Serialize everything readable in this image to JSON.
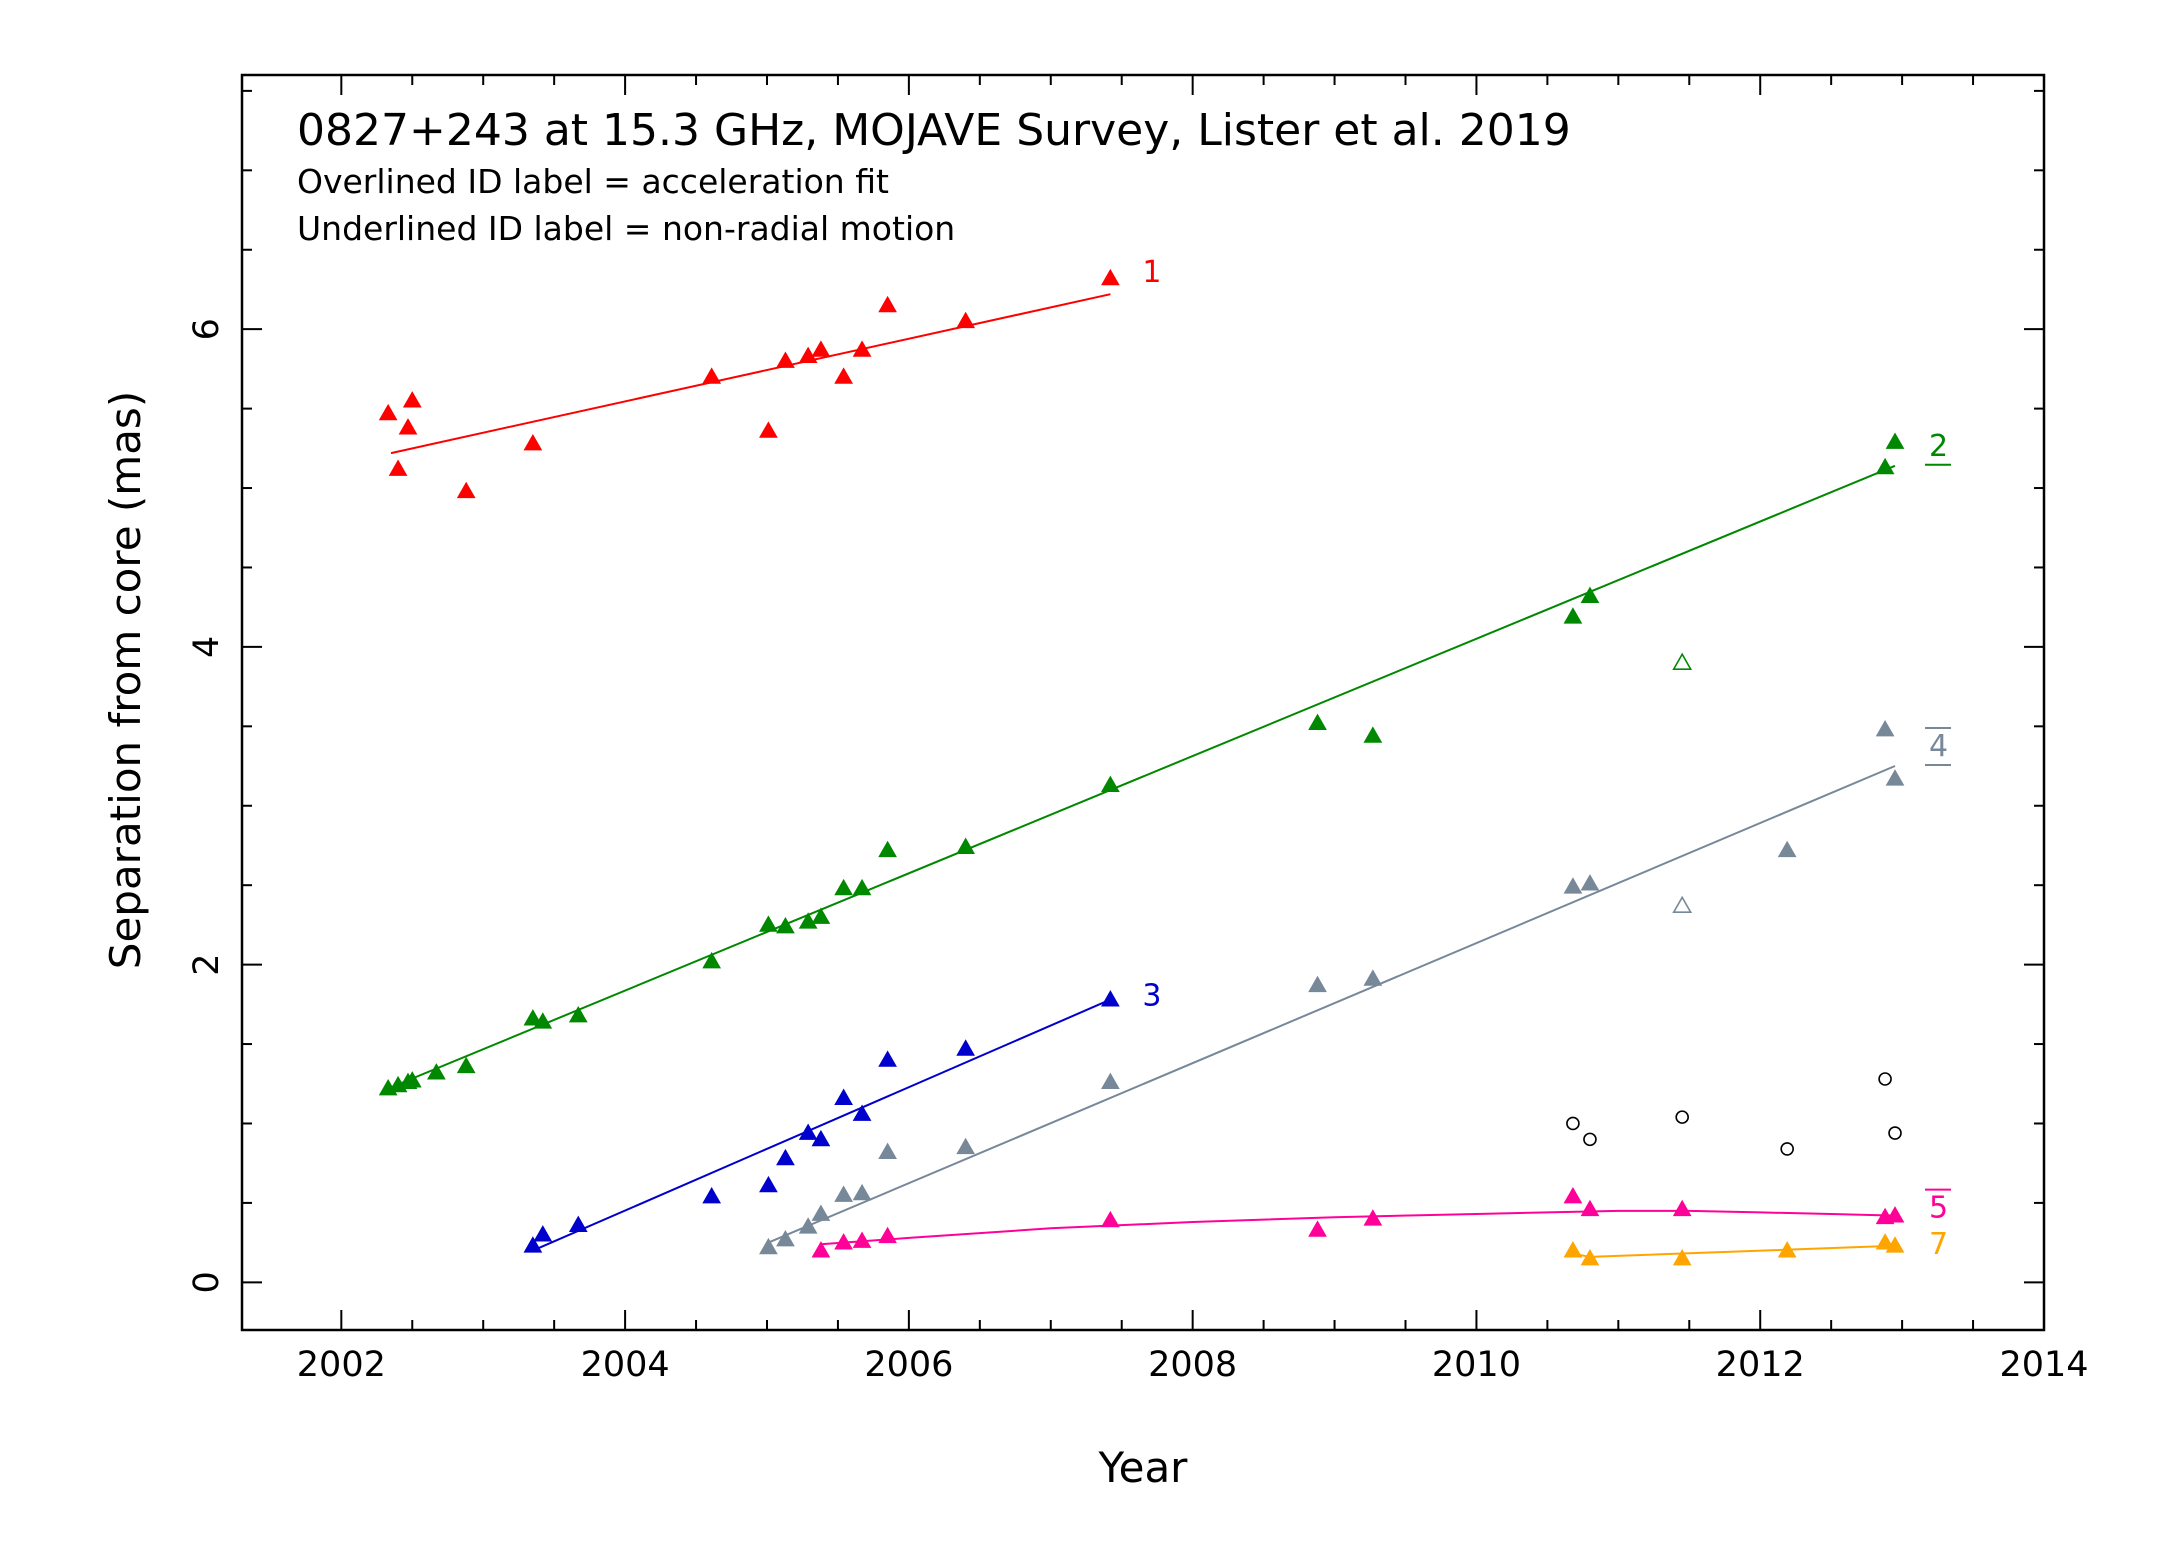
{
  "chart_data": {
    "type": "scatter",
    "title": "0827+243 at 15.3 GHz, MOJAVE Survey, Lister et al. 2019",
    "notes": [
      "Overlined ID label = acceleration fit",
      "Underlined ID label = non-radial motion"
    ],
    "xlabel": "Year",
    "ylabel": "Separation from core (mas)",
    "xlim": [
      2001.3,
      2014.0
    ],
    "ylim": [
      -0.3,
      7.6
    ],
    "xticks": [
      "2002",
      "2004",
      "2006",
      "2008",
      "2010",
      "2012",
      "2014"
    ],
    "yticks": [
      "0",
      "2",
      "4",
      "6"
    ],
    "grid": false,
    "series": [
      {
        "name": "1",
        "color": "#ff0000",
        "overline": false,
        "underline": false,
        "x": [
          2002.33,
          2002.4,
          2002.47,
          2002.5,
          2002.88,
          2003.35,
          2004.61,
          2005.01,
          2005.13,
          2005.29,
          2005.38,
          2005.54,
          2005.67,
          2005.85,
          2006.4,
          2007.42
        ],
        "y": [
          5.47,
          5.12,
          5.38,
          5.55,
          4.98,
          5.28,
          5.7,
          5.36,
          5.8,
          5.83,
          5.87,
          5.7,
          5.87,
          6.15,
          6.05,
          6.32
        ],
        "fit": {
          "x": [
            2002.35,
            2007.42
          ],
          "y": [
            5.22,
            6.22
          ]
        },
        "open": {
          "x": [],
          "y": []
        }
      },
      {
        "name": "2",
        "color": "#008800",
        "overline": false,
        "underline": true,
        "x": [
          2002.33,
          2002.4,
          2002.47,
          2002.5,
          2002.67,
          2002.88,
          2003.35,
          2003.42,
          2003.67,
          2004.61,
          2005.01,
          2005.13,
          2005.29,
          2005.38,
          2005.54,
          2005.67,
          2005.85,
          2006.4,
          2007.42,
          2008.88,
          2009.27,
          2010.68,
          2010.8,
          2012.88,
          2012.95
        ],
        "y": [
          1.22,
          1.24,
          1.26,
          1.27,
          1.32,
          1.36,
          1.66,
          1.64,
          1.68,
          2.02,
          2.25,
          2.24,
          2.27,
          2.3,
          2.48,
          2.48,
          2.72,
          2.74,
          3.13,
          3.52,
          3.44,
          4.19,
          4.32,
          5.13,
          5.29
        ],
        "fit": {
          "x": [
            2002.33,
            2012.95
          ],
          "y": [
            1.22,
            5.14
          ]
        },
        "open": {
          "x": [
            2011.45
          ],
          "y": [
            3.9
          ]
        }
      },
      {
        "name": "3",
        "color": "#0000cc",
        "overline": false,
        "underline": false,
        "x": [
          2003.35,
          2003.42,
          2003.67,
          2004.61,
          2005.01,
          2005.13,
          2005.29,
          2005.38,
          2005.54,
          2005.67,
          2005.85,
          2006.4,
          2007.42
        ],
        "y": [
          0.23,
          0.3,
          0.36,
          0.54,
          0.61,
          0.78,
          0.94,
          0.9,
          1.16,
          1.06,
          1.4,
          1.47,
          1.78
        ],
        "fit": {
          "x": [
            2003.35,
            2007.42
          ],
          "y": [
            0.2,
            1.78
          ]
        },
        "open": {
          "x": [],
          "y": []
        }
      },
      {
        "name": "4",
        "color": "#778899",
        "overline": true,
        "underline": true,
        "x": [
          2005.01,
          2005.13,
          2005.29,
          2005.38,
          2005.54,
          2005.67,
          2005.85,
          2006.4,
          2007.42,
          2008.88,
          2009.27,
          2010.68,
          2010.8,
          2012.19,
          2012.88,
          2012.95
        ],
        "y": [
          0.22,
          0.27,
          0.35,
          0.43,
          0.55,
          0.56,
          0.82,
          0.85,
          1.26,
          1.87,
          1.91,
          2.49,
          2.51,
          2.72,
          3.48,
          3.17
        ],
        "fit": {
          "x": [
            2005.01,
            2012.95
          ],
          "y": [
            0.25,
            3.25
          ]
        },
        "open": {
          "x": [
            2011.45
          ],
          "y": [
            2.37
          ]
        }
      },
      {
        "name": "5",
        "color": "#ff0099",
        "overline": true,
        "underline": false,
        "x": [
          2005.38,
          2005.54,
          2005.67,
          2005.85,
          2007.42,
          2008.88,
          2009.27,
          2010.68,
          2010.8,
          2011.45,
          2012.88,
          2012.95
        ],
        "y": [
          0.2,
          0.25,
          0.26,
          0.29,
          0.39,
          0.33,
          0.4,
          0.54,
          0.46,
          0.46,
          0.41,
          0.42
        ],
        "fit": {
          "x": [
            2005.38,
            2006.0,
            2007.0,
            2008.0,
            2009.0,
            2010.0,
            2010.5,
            2011.0,
            2011.5,
            2012.0,
            2012.5,
            2012.95
          ],
          "y": [
            0.24,
            0.28,
            0.34,
            0.38,
            0.41,
            0.43,
            0.44,
            0.45,
            0.45,
            0.44,
            0.43,
            0.42
          ]
        },
        "open": {
          "x": [],
          "y": []
        }
      },
      {
        "name": "7",
        "color": "#ffa500",
        "overline": false,
        "underline": false,
        "x": [
          2010.68,
          2010.8,
          2011.45,
          2012.19,
          2012.88,
          2012.95
        ],
        "y": [
          0.2,
          0.15,
          0.15,
          0.2,
          0.25,
          0.23
        ],
        "fit": {
          "x": [
            2010.68,
            2010.8,
            2012.95
          ],
          "y": [
            0.18,
            0.16,
            0.23
          ]
        },
        "open": {
          "x": [],
          "y": []
        }
      }
    ],
    "unlabeled_open_circles": {
      "color": "#000000",
      "x": [
        2010.68,
        2010.8,
        2011.45,
        2012.19,
        2012.88,
        2012.95
      ],
      "y": [
        1.0,
        0.9,
        1.04,
        0.84,
        1.28,
        0.94
      ]
    }
  }
}
